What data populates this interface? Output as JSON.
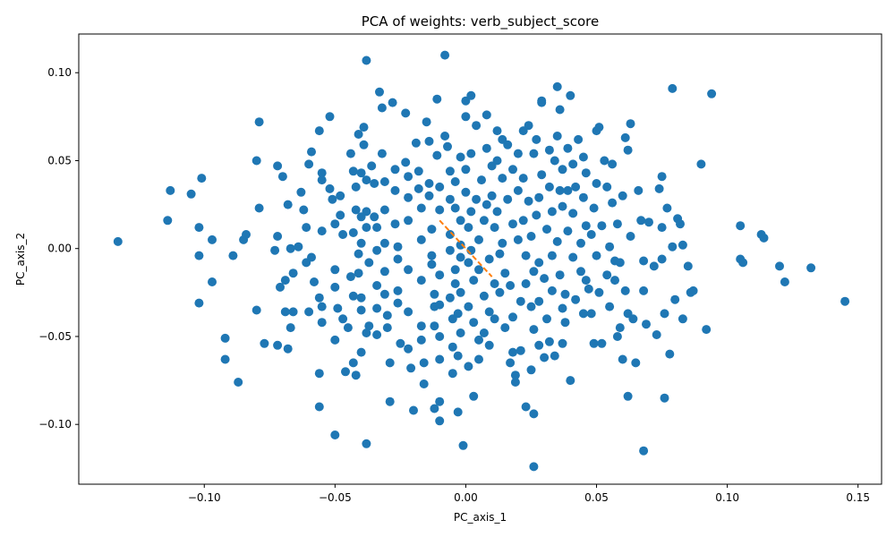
{
  "chart_data": {
    "type": "scatter",
    "title": "PCA of weights: verb_subject_score",
    "xlabel": "PC_axis_1",
    "ylabel": "PC_axis_2",
    "xlim": [
      -0.148,
      0.159
    ],
    "ylim": [
      -0.134,
      0.122
    ],
    "xticks": [
      -0.1,
      -0.05,
      0.0,
      0.05,
      0.1,
      0.15
    ],
    "xtick_labels": [
      "−0.10",
      "−0.05",
      "0.00",
      "0.05",
      "0.10",
      "0.15"
    ],
    "yticks": [
      -0.1,
      -0.05,
      0.0,
      0.05,
      0.1
    ],
    "ytick_labels": [
      "−0.10",
      "−0.05",
      "0.00",
      "0.05",
      "0.10"
    ],
    "grid": false,
    "marker_color": "#1f77b4",
    "line_color": "#ff7f0e",
    "line_style": "dashed",
    "line": {
      "x": [
        -0.01,
        0.01
      ],
      "y": [
        0.016,
        -0.016
      ]
    },
    "points": [
      [
        -0.133,
        0.004
      ],
      [
        -0.113,
        0.033
      ],
      [
        -0.114,
        0.016
      ],
      [
        -0.105,
        0.031
      ],
      [
        -0.101,
        0.04
      ],
      [
        -0.102,
        0.012
      ],
      [
        -0.102,
        -0.004
      ],
      [
        -0.102,
        -0.031
      ],
      [
        -0.097,
        0.005
      ],
      [
        -0.097,
        -0.019
      ],
      [
        -0.092,
        -0.051
      ],
      [
        -0.092,
        -0.063
      ],
      [
        -0.087,
        -0.076
      ],
      [
        -0.089,
        -0.004
      ],
      [
        -0.085,
        0.005
      ],
      [
        -0.084,
        0.008
      ],
      [
        -0.08,
        0.05
      ],
      [
        -0.079,
        0.072
      ],
      [
        -0.079,
        0.023
      ],
      [
        -0.08,
        -0.035
      ],
      [
        -0.077,
        -0.054
      ],
      [
        -0.072,
        0.047
      ],
      [
        -0.072,
        0.007
      ],
      [
        -0.073,
        -0.001
      ],
      [
        -0.07,
        0.041
      ],
      [
        -0.068,
        0.025
      ],
      [
        -0.071,
        -0.022
      ],
      [
        -0.069,
        -0.018
      ],
      [
        -0.072,
        -0.055
      ],
      [
        -0.069,
        -0.036
      ],
      [
        -0.066,
        -0.036
      ],
      [
        -0.068,
        -0.057
      ],
      [
        -0.067,
        -0.045
      ],
      [
        -0.066,
        -0.014
      ],
      [
        -0.067,
        0.0
      ],
      [
        -0.064,
        0.001
      ],
      [
        -0.063,
        0.032
      ],
      [
        -0.062,
        0.022
      ],
      [
        -0.061,
        0.012
      ],
      [
        -0.06,
        0.048
      ],
      [
        -0.059,
        0.055
      ],
      [
        -0.058,
        -0.019
      ],
      [
        -0.06,
        -0.036
      ],
      [
        -0.061,
        -0.008
      ],
      [
        -0.059,
        -0.005
      ],
      [
        -0.056,
        0.067
      ],
      [
        -0.055,
        0.043
      ],
      [
        -0.055,
        0.039
      ],
      [
        -0.055,
        0.01
      ],
      [
        -0.056,
        -0.028
      ],
      [
        -0.055,
        -0.042
      ],
      [
        -0.055,
        -0.033
      ],
      [
        -0.056,
        -0.071
      ],
      [
        -0.056,
        -0.09
      ],
      [
        -0.052,
        0.075
      ],
      [
        -0.052,
        0.034
      ],
      [
        -0.051,
        0.028
      ],
      [
        -0.05,
        0.014
      ],
      [
        -0.05,
        -0.012
      ],
      [
        -0.05,
        -0.022
      ],
      [
        -0.049,
        -0.034
      ],
      [
        -0.05,
        -0.052
      ],
      [
        -0.05,
        -0.106
      ],
      [
        -0.048,
        0.03
      ],
      [
        -0.048,
        0.019
      ],
      [
        -0.047,
        0.008
      ],
      [
        -0.047,
        -0.04
      ],
      [
        -0.046,
        -0.07
      ],
      [
        -0.045,
        -0.045
      ],
      [
        -0.044,
        0.054
      ],
      [
        -0.043,
        0.044
      ],
      [
        -0.042,
        0.035
      ],
      [
        -0.042,
        0.022
      ],
      [
        -0.043,
        0.009
      ],
      [
        -0.044,
        -0.016
      ],
      [
        -0.043,
        -0.027
      ],
      [
        -0.043,
        -0.065
      ],
      [
        -0.042,
        -0.072
      ],
      [
        -0.041,
        0.065
      ],
      [
        -0.04,
        0.043
      ],
      [
        -0.04,
        0.018
      ],
      [
        -0.04,
        0.003
      ],
      [
        -0.041,
        -0.003
      ],
      [
        -0.041,
        -0.014
      ],
      [
        -0.04,
        -0.028
      ],
      [
        -0.04,
        -0.035
      ],
      [
        -0.04,
        -0.059
      ],
      [
        -0.038,
        0.107
      ],
      [
        -0.039,
        0.069
      ],
      [
        -0.039,
        0.059
      ],
      [
        -0.038,
        0.039
      ],
      [
        -0.038,
        0.021
      ],
      [
        -0.038,
        0.012
      ],
      [
        -0.037,
        -0.008
      ],
      [
        -0.037,
        -0.044
      ],
      [
        -0.038,
        -0.048
      ],
      [
        -0.038,
        -0.111
      ],
      [
        -0.036,
        0.047
      ],
      [
        -0.035,
        0.037
      ],
      [
        -0.035,
        0.018
      ],
      [
        -0.034,
        0.012
      ],
      [
        -0.034,
        -0.001
      ],
      [
        -0.034,
        -0.021
      ],
      [
        -0.034,
        -0.034
      ],
      [
        -0.034,
        -0.049
      ],
      [
        -0.033,
        0.089
      ],
      [
        -0.032,
        0.08
      ],
      [
        -0.032,
        0.054
      ],
      [
        -0.031,
        0.038
      ],
      [
        -0.031,
        0.022
      ],
      [
        -0.031,
        0.003
      ],
      [
        -0.031,
        -0.013
      ],
      [
        -0.031,
        -0.026
      ],
      [
        -0.03,
        -0.038
      ],
      [
        -0.03,
        -0.045
      ],
      [
        -0.029,
        -0.065
      ],
      [
        -0.029,
        -0.087
      ],
      [
        -0.028,
        0.083
      ],
      [
        -0.027,
        0.045
      ],
      [
        -0.027,
        0.033
      ],
      [
        -0.027,
        0.014
      ],
      [
        -0.026,
        0.001
      ],
      [
        -0.026,
        -0.006
      ],
      [
        -0.026,
        -0.024
      ],
      [
        -0.026,
        -0.031
      ],
      [
        -0.025,
        -0.054
      ],
      [
        -0.023,
        0.077
      ],
      [
        -0.023,
        0.049
      ],
      [
        -0.022,
        0.041
      ],
      [
        -0.022,
        0.029
      ],
      [
        -0.022,
        0.016
      ],
      [
        -0.022,
        -0.012
      ],
      [
        -0.022,
        -0.036
      ],
      [
        -0.022,
        -0.057
      ],
      [
        -0.021,
        -0.068
      ],
      [
        -0.02,
        -0.092
      ],
      [
        -0.019,
        0.06
      ],
      [
        -0.018,
        0.044
      ],
      [
        -0.018,
        0.034
      ],
      [
        -0.017,
        0.023
      ],
      [
        -0.017,
        0.005
      ],
      [
        -0.017,
        -0.018
      ],
      [
        -0.017,
        -0.044
      ],
      [
        -0.017,
        -0.052
      ],
      [
        -0.016,
        -0.065
      ],
      [
        -0.016,
        -0.077
      ],
      [
        -0.015,
        0.072
      ],
      [
        -0.014,
        0.061
      ],
      [
        -0.014,
        0.037
      ],
      [
        -0.014,
        0.03
      ],
      [
        -0.013,
        0.011
      ],
      [
        -0.013,
        -0.004
      ],
      [
        -0.013,
        -0.009
      ],
      [
        -0.012,
        -0.026
      ],
      [
        -0.012,
        -0.033
      ],
      [
        -0.012,
        -0.044
      ],
      [
        -0.012,
        -0.091
      ],
      [
        -0.011,
        0.085
      ],
      [
        -0.011,
        0.053
      ],
      [
        -0.01,
        0.035
      ],
      [
        -0.01,
        0.022
      ],
      [
        -0.01,
        -0.015
      ],
      [
        -0.01,
        -0.032
      ],
      [
        -0.01,
        -0.05
      ],
      [
        -0.01,
        -0.063
      ],
      [
        -0.01,
        -0.087
      ],
      [
        -0.01,
        -0.098
      ],
      [
        -0.008,
        0.11
      ],
      [
        -0.008,
        0.064
      ],
      [
        -0.007,
        0.058
      ],
      [
        -0.006,
        0.044
      ],
      [
        -0.006,
        0.028
      ],
      [
        -0.006,
        0.008
      ],
      [
        -0.006,
        -0.001
      ],
      [
        -0.006,
        -0.028
      ],
      [
        -0.005,
        -0.04
      ],
      [
        -0.005,
        -0.056
      ],
      [
        -0.005,
        -0.071
      ],
      [
        -0.004,
        0.038
      ],
      [
        -0.004,
        0.023
      ],
      [
        -0.004,
        -0.012
      ],
      [
        -0.004,
        -0.02
      ],
      [
        -0.003,
        -0.037
      ],
      [
        -0.003,
        -0.061
      ],
      [
        -0.003,
        -0.093
      ],
      [
        -0.002,
        0.052
      ],
      [
        -0.002,
        0.016
      ],
      [
        -0.002,
        0.002
      ],
      [
        -0.002,
        -0.005
      ],
      [
        -0.002,
        -0.025
      ],
      [
        -0.002,
        -0.048
      ],
      [
        -0.001,
        -0.112
      ],
      [
        0.0,
        0.084
      ],
      [
        0.0,
        0.075
      ],
      [
        0.0,
        0.045
      ],
      [
        0.0,
        0.032
      ],
      [
        0.001,
        0.012
      ],
      [
        0.001,
        -0.008
      ],
      [
        0.001,
        -0.033
      ],
      [
        0.001,
        -0.067
      ],
      [
        0.002,
        0.087
      ],
      [
        0.002,
        0.054
      ],
      [
        0.002,
        0.021
      ],
      [
        0.002,
        -0.001
      ],
      [
        0.003,
        -0.018
      ],
      [
        0.003,
        -0.042
      ],
      [
        0.003,
        -0.084
      ],
      [
        0.004,
        0.07
      ],
      [
        0.004,
        0.028
      ],
      [
        0.005,
        0.005
      ],
      [
        0.005,
        -0.012
      ],
      [
        0.005,
        -0.052
      ],
      [
        0.005,
        -0.063
      ],
      [
        0.006,
        0.039
      ],
      [
        0.007,
        0.016
      ],
      [
        0.007,
        -0.027
      ],
      [
        0.007,
        -0.048
      ],
      [
        0.008,
        0.076
      ],
      [
        0.008,
        0.057
      ],
      [
        0.008,
        0.025
      ],
      [
        0.009,
        -0.006
      ],
      [
        0.009,
        -0.036
      ],
      [
        0.009,
        -0.055
      ],
      [
        0.01,
        0.047
      ],
      [
        0.01,
        0.03
      ],
      [
        0.011,
        0.012
      ],
      [
        0.011,
        -0.02
      ],
      [
        0.011,
        -0.04
      ],
      [
        0.012,
        0.067
      ],
      [
        0.012,
        0.05
      ],
      [
        0.012,
        0.021
      ],
      [
        0.013,
        -0.003
      ],
      [
        0.013,
        -0.025
      ],
      [
        0.014,
        0.062
      ],
      [
        0.014,
        0.04
      ],
      [
        0.014,
        0.003
      ],
      [
        0.015,
        -0.014
      ],
      [
        0.015,
        -0.045
      ],
      [
        0.016,
        0.059
      ],
      [
        0.016,
        0.028
      ],
      [
        0.017,
        -0.021
      ],
      [
        0.017,
        -0.065
      ],
      [
        0.018,
        0.045
      ],
      [
        0.018,
        0.014
      ],
      [
        0.018,
        -0.039
      ],
      [
        0.018,
        -0.059
      ],
      [
        0.019,
        -0.076
      ],
      [
        0.019,
        -0.072
      ],
      [
        0.02,
        0.054
      ],
      [
        0.02,
        0.033
      ],
      [
        0.02,
        0.005
      ],
      [
        0.021,
        -0.03
      ],
      [
        0.021,
        -0.058
      ],
      [
        0.022,
        0.067
      ],
      [
        0.022,
        0.04
      ],
      [
        0.022,
        0.016
      ],
      [
        0.023,
        -0.004
      ],
      [
        0.023,
        -0.02
      ],
      [
        0.023,
        -0.09
      ],
      [
        0.024,
        0.07
      ],
      [
        0.024,
        0.027
      ],
      [
        0.025,
        0.007
      ],
      [
        0.025,
        -0.033
      ],
      [
        0.025,
        -0.069
      ],
      [
        0.026,
        0.054
      ],
      [
        0.026,
        -0.013
      ],
      [
        0.026,
        -0.046
      ],
      [
        0.026,
        -0.094
      ],
      [
        0.026,
        -0.124
      ],
      [
        0.027,
        0.062
      ],
      [
        0.027,
        0.019
      ],
      [
        0.028,
        0.029
      ],
      [
        0.028,
        -0.008
      ],
      [
        0.028,
        -0.03
      ],
      [
        0.028,
        -0.055
      ],
      [
        0.029,
        0.084
      ],
      [
        0.029,
        0.083
      ],
      [
        0.029,
        0.042
      ],
      [
        0.03,
        -0.017
      ],
      [
        0.03,
        -0.062
      ],
      [
        0.031,
        0.011
      ],
      [
        0.031,
        -0.04
      ],
      [
        0.032,
        0.056
      ],
      [
        0.032,
        0.035
      ],
      [
        0.032,
        -0.053
      ],
      [
        0.033,
        0.021
      ],
      [
        0.033,
        -0.004
      ],
      [
        0.033,
        -0.024
      ],
      [
        0.034,
        0.05
      ],
      [
        0.034,
        -0.061
      ],
      [
        0.035,
        0.092
      ],
      [
        0.035,
        0.064
      ],
      [
        0.035,
        0.004
      ],
      [
        0.036,
        0.079
      ],
      [
        0.036,
        0.033
      ],
      [
        0.036,
        -0.015
      ],
      [
        0.037,
        0.045
      ],
      [
        0.037,
        0.024
      ],
      [
        0.037,
        -0.034
      ],
      [
        0.037,
        -0.054
      ],
      [
        0.038,
        -0.026
      ],
      [
        0.038,
        -0.042
      ],
      [
        0.039,
        0.057
      ],
      [
        0.039,
        0.033
      ],
      [
        0.039,
        0.01
      ],
      [
        0.04,
        0.087
      ],
      [
        0.04,
        -0.075
      ],
      [
        0.041,
        0.048
      ],
      [
        0.041,
        0.02
      ],
      [
        0.041,
        -0.005
      ],
      [
        0.042,
        0.035
      ],
      [
        0.042,
        -0.029
      ],
      [
        0.043,
        0.062
      ],
      [
        0.044,
        0.003
      ],
      [
        0.044,
        -0.013
      ],
      [
        0.045,
        0.052
      ],
      [
        0.045,
        0.029
      ],
      [
        0.045,
        -0.037
      ],
      [
        0.046,
        0.043
      ],
      [
        0.046,
        0.013
      ],
      [
        0.046,
        -0.018
      ],
      [
        0.047,
        -0.023
      ],
      [
        0.048,
        0.008
      ],
      [
        0.048,
        -0.037
      ],
      [
        0.049,
        0.023
      ],
      [
        0.049,
        -0.054
      ],
      [
        0.05,
        0.067
      ],
      [
        0.05,
        0.037
      ],
      [
        0.05,
        -0.004
      ],
      [
        0.051,
        -0.025
      ],
      [
        0.051,
        0.069
      ],
      [
        0.052,
        -0.054
      ],
      [
        0.052,
        0.013
      ],
      [
        0.053,
        0.05
      ],
      [
        0.054,
        -0.015
      ],
      [
        0.054,
        0.035
      ],
      [
        0.055,
        0.001
      ],
      [
        0.055,
        -0.033
      ],
      [
        0.056,
        0.048
      ],
      [
        0.056,
        0.026
      ],
      [
        0.057,
        -0.007
      ],
      [
        0.057,
        -0.018
      ],
      [
        0.058,
        -0.05
      ],
      [
        0.058,
        0.014
      ],
      [
        0.059,
        -0.045
      ],
      [
        0.059,
        -0.008
      ],
      [
        0.06,
        0.03
      ],
      [
        0.06,
        -0.063
      ],
      [
        0.061,
        0.063
      ],
      [
        0.061,
        -0.024
      ],
      [
        0.062,
        0.056
      ],
      [
        0.062,
        -0.084
      ],
      [
        0.062,
        -0.037
      ],
      [
        0.063,
        0.071
      ],
      [
        0.063,
        0.007
      ],
      [
        0.064,
        -0.04
      ],
      [
        0.065,
        -0.065
      ],
      [
        0.066,
        0.033
      ],
      [
        0.067,
        0.016
      ],
      [
        0.068,
        -0.007
      ],
      [
        0.068,
        -0.024
      ],
      [
        0.068,
        -0.115
      ],
      [
        0.069,
        -0.043
      ],
      [
        0.07,
        0.015
      ],
      [
        0.072,
        -0.01
      ],
      [
        0.073,
        -0.049
      ],
      [
        0.074,
        0.034
      ],
      [
        0.075,
        0.041
      ],
      [
        0.075,
        0.012
      ],
      [
        0.075,
        -0.006
      ],
      [
        0.076,
        -0.037
      ],
      [
        0.076,
        -0.085
      ],
      [
        0.077,
        0.023
      ],
      [
        0.078,
        -0.06
      ],
      [
        0.079,
        0.091
      ],
      [
        0.079,
        0.001
      ],
      [
        0.08,
        -0.029
      ],
      [
        0.081,
        0.017
      ],
      [
        0.082,
        0.014
      ],
      [
        0.083,
        0.002
      ],
      [
        0.083,
        -0.04
      ],
      [
        0.085,
        -0.01
      ],
      [
        0.086,
        -0.025
      ],
      [
        0.087,
        -0.024
      ],
      [
        0.09,
        0.048
      ],
      [
        0.092,
        -0.046
      ],
      [
        0.094,
        0.088
      ],
      [
        0.105,
        0.013
      ],
      [
        0.105,
        -0.006
      ],
      [
        0.106,
        -0.008
      ],
      [
        0.113,
        0.008
      ],
      [
        0.114,
        0.006
      ],
      [
        0.12,
        -0.01
      ],
      [
        0.122,
        -0.019
      ],
      [
        0.132,
        -0.011
      ],
      [
        0.145,
        -0.03
      ]
    ]
  }
}
